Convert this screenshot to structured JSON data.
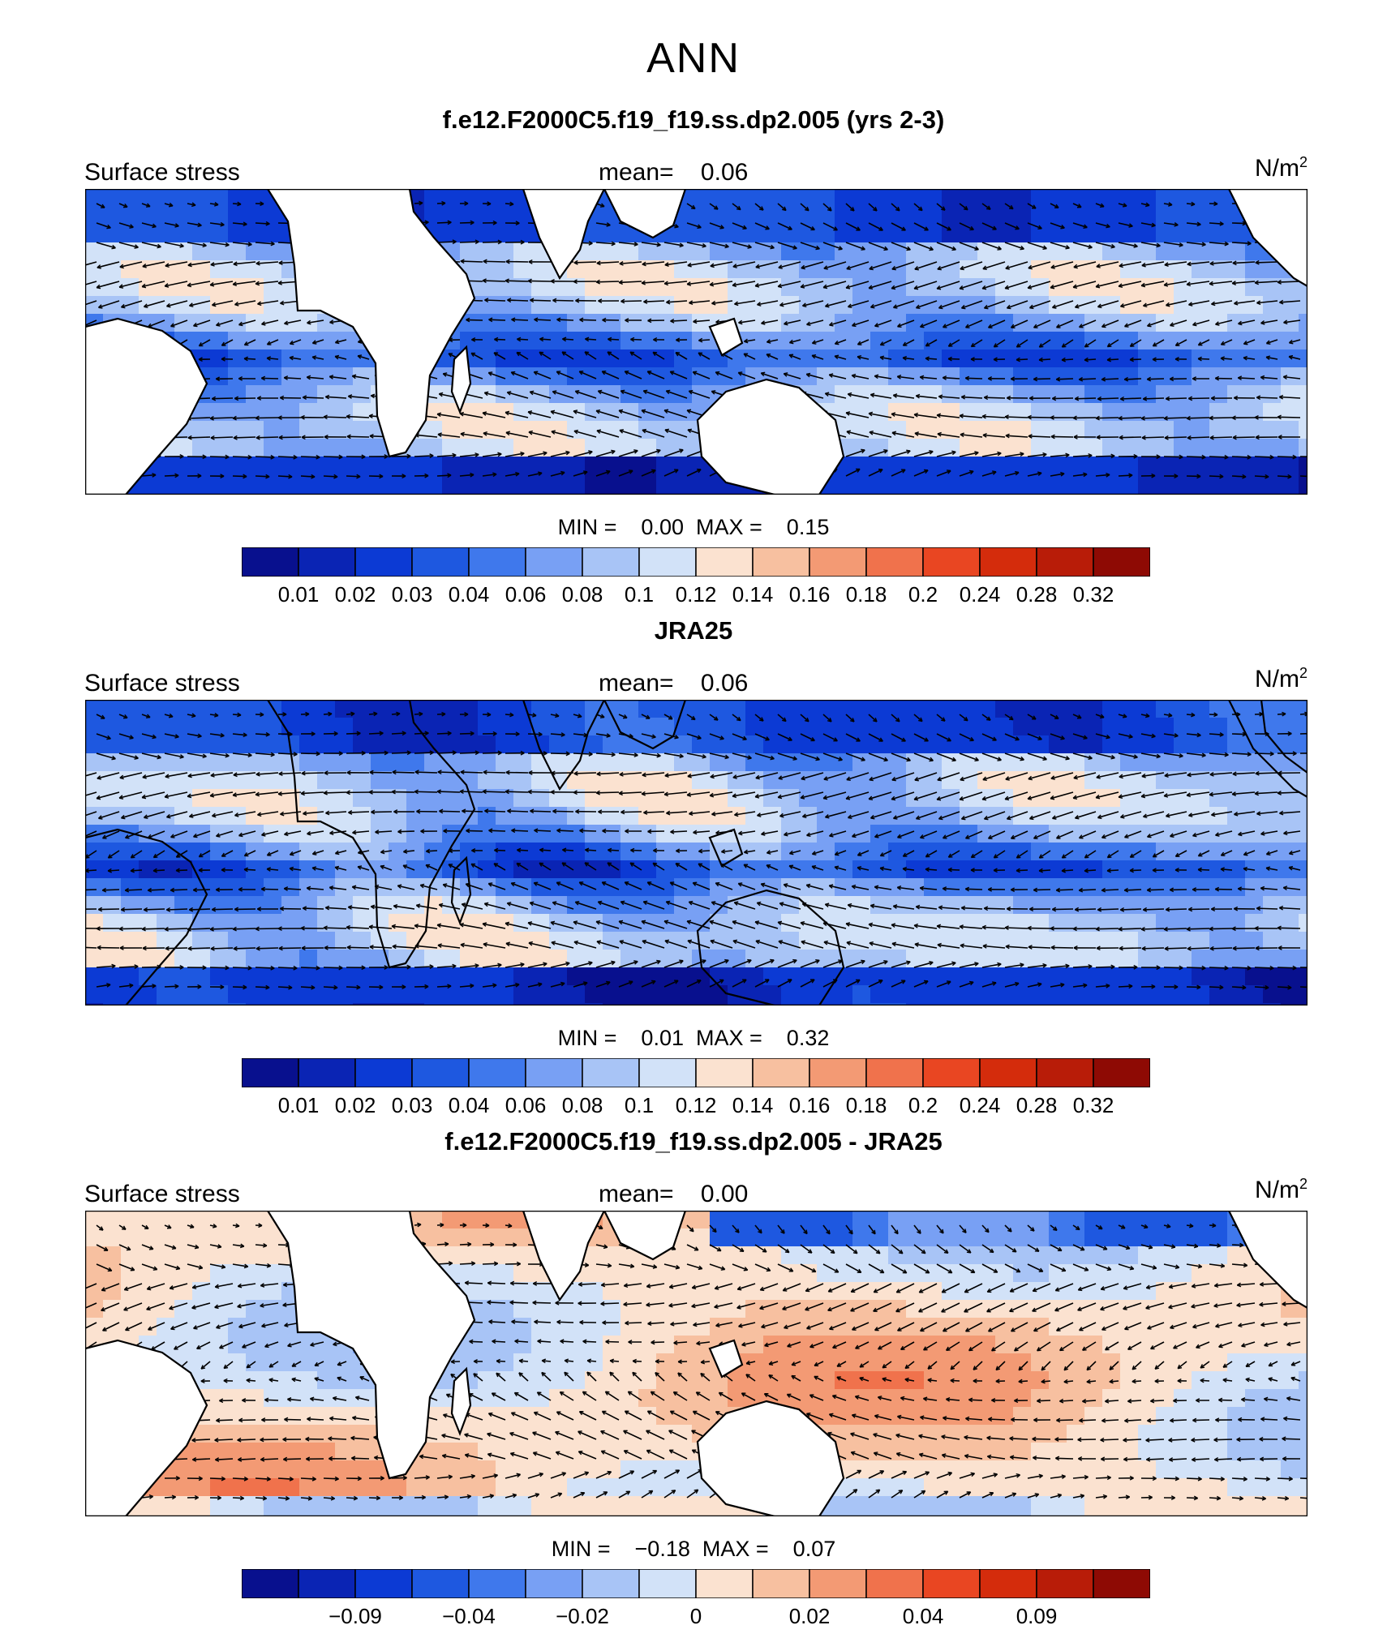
{
  "figure_title": "ANN",
  "colors": {
    "palette": [
      "#08108e",
      "#0a24b4",
      "#0c3ad4",
      "#1e58e0",
      "#3f78ec",
      "#78a0f4",
      "#a8c4f6",
      "#d2e2f8",
      "#fbe2d0",
      "#f7c0a0",
      "#f39a74",
      "#f0724c",
      "#e94622",
      "#d42c0c",
      "#b81c08",
      "#8e0a04"
    ],
    "land": "#ffffff",
    "coast": "#000000"
  },
  "panels": [
    {
      "title": "f.e12.F2000C5.f19_f19.ss.dp2.005 (yrs 2-3)",
      "label": "Surface stress",
      "mean_label": "mean=",
      "mean_value": "0.06",
      "units": "N/m",
      "units_sup": "2",
      "min_label": "MIN =",
      "min_value": "0.00",
      "max_label": "MAX =",
      "max_value": "0.15",
      "colorbar_ticks": [
        "0.01",
        "0.02",
        "0.03",
        "0.04",
        "0.06",
        "0.08",
        "0.1",
        "0.12",
        "0.14",
        "0.16",
        "0.18",
        "0.2",
        "0.24",
        "0.28",
        "0.32"
      ]
    },
    {
      "title": "JRA25",
      "label": "Surface stress",
      "mean_label": "mean=",
      "mean_value": "0.06",
      "units": "N/m",
      "units_sup": "2",
      "min_label": "MIN =",
      "min_value": "0.01",
      "max_label": "MAX =",
      "max_value": "0.32",
      "colorbar_ticks": [
        "0.01",
        "0.02",
        "0.03",
        "0.04",
        "0.06",
        "0.08",
        "0.1",
        "0.12",
        "0.14",
        "0.16",
        "0.18",
        "0.2",
        "0.24",
        "0.28",
        "0.32"
      ]
    },
    {
      "title": "f.e12.F2000C5.f19_f19.ss.dp2.005 - JRA25",
      "label": "Surface stress",
      "mean_label": "mean=",
      "mean_value": "0.00",
      "units": "N/m",
      "units_sup": "2",
      "min_label": "MIN =",
      "min_value": "−0.18",
      "max_label": "MAX =",
      "max_value": "0.07",
      "colorbar_ticks": [
        "−0.09",
        "",
        "−0.04",
        "",
        "−0.02",
        "",
        "0",
        "",
        "0.02",
        "",
        "0.04",
        "",
        "0.09"
      ]
    }
  ],
  "chart_data": [
    {
      "type": "heatmap",
      "title": "f.e12.F2000C5.f19_f19.ss.dp2.005 (yrs 2-3)",
      "variable": "Surface stress",
      "units": "N/m2",
      "mean": 0.06,
      "min": 0.0,
      "max": 0.15,
      "levels": [
        0.01,
        0.02,
        0.03,
        0.04,
        0.06,
        0.08,
        0.1,
        0.12,
        0.14,
        0.16,
        0.18,
        0.2,
        0.24,
        0.28,
        0.32
      ],
      "overlay": "wind stress vectors",
      "domain": "ocean only (land masked)"
    },
    {
      "type": "heatmap",
      "title": "JRA25",
      "variable": "Surface stress",
      "units": "N/m2",
      "mean": 0.06,
      "min": 0.01,
      "max": 0.32,
      "levels": [
        0.01,
        0.02,
        0.03,
        0.04,
        0.06,
        0.08,
        0.1,
        0.12,
        0.14,
        0.16,
        0.18,
        0.2,
        0.24,
        0.28,
        0.32
      ],
      "overlay": "wind stress vectors",
      "domain": "ocean and land"
    },
    {
      "type": "heatmap",
      "title": "f.e12.F2000C5.f19_f19.ss.dp2.005 - JRA25",
      "variable": "Surface stress",
      "units": "N/m2",
      "mean": 0.0,
      "min": -0.18,
      "max": 0.07,
      "levels": [
        -0.09,
        -0.04,
        -0.02,
        0,
        0.02,
        0.04,
        0.09
      ],
      "overlay": "wind stress difference vectors",
      "domain": "ocean only (land masked)"
    }
  ]
}
